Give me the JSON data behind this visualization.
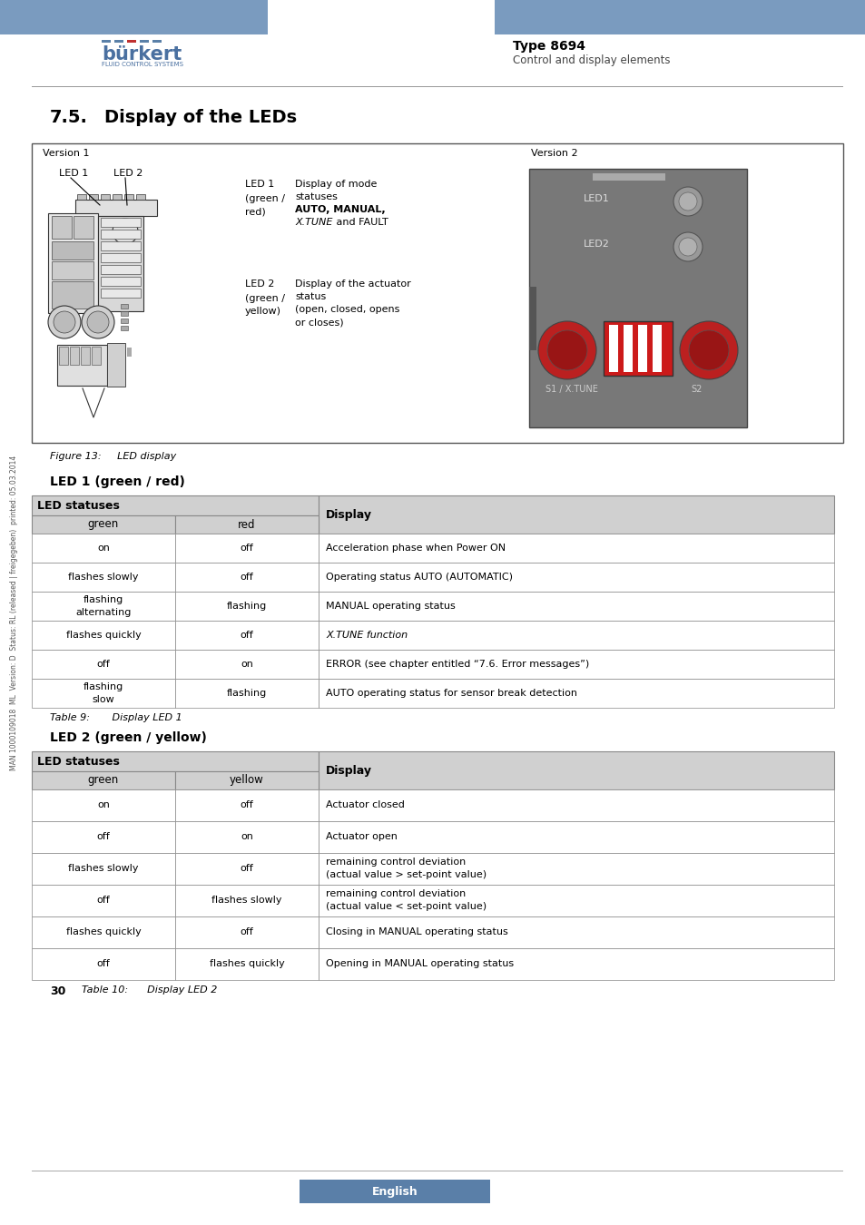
{
  "page_bg": "#ffffff",
  "header_bar_color": "#7a9bbf",
  "header_text_type": "Type 8694",
  "header_text_sub": "Control and display elements",
  "section_title": "7.5.    Display of the LEDs",
  "figure_caption": "Figure 13:     LED display",
  "led1_section_title": "LED 1 (green / red)",
  "led2_section_title": "LED 2 (green / yellow)",
  "table9_caption": "Table 9:       Display LED 1",
  "table10_caption": "Table 10:      Display LED 2",
  "page_number": "30",
  "footer_text": "English",
  "sidebar_text": "MAN 1000109018  ML  Version: D  Status: RL (released | freigegeben)  printed: 05.03.2014",
  "table1_header_col1": "LED statuses",
  "table1_header_col2": "green",
  "table1_header_col3": "red",
  "table1_header_col4": "Display",
  "table1_rows": [
    [
      "on",
      "off",
      "Acceleration phase when Power ON"
    ],
    [
      "flashes slowly",
      "off",
      "Operating status AUTO (AUTOMATIC)"
    ],
    [
      "flashing\nalternating",
      "flashing",
      "MANUAL operating status"
    ],
    [
      "flashes quickly",
      "off",
      "X.TUNE function"
    ],
    [
      "off",
      "on",
      "ERROR (see chapter entitled “7.6. Error messages”)"
    ],
    [
      "flashing\nslow",
      "flashing",
      "AUTO operating status for sensor break detection"
    ]
  ],
  "table2_header_col1": "LED statuses",
  "table2_header_col2": "green",
  "table2_header_col3": "yellow",
  "table2_header_col4": "Display",
  "table2_rows": [
    [
      "on",
      "off",
      "Actuator closed"
    ],
    [
      "off",
      "on",
      "Actuator open"
    ],
    [
      "flashes slowly",
      "off",
      "remaining control deviation\n(actual value > set-point value)"
    ],
    [
      "off",
      "flashes slowly",
      "remaining control deviation\n(actual value < set-point value)"
    ],
    [
      "flashes quickly",
      "off",
      "Closing in MANUAL operating status"
    ],
    [
      "off",
      "flashes quickly",
      "Opening in MANUAL operating status"
    ]
  ],
  "version1_text": "Version 1",
  "version2_text": "Version 2",
  "led1_label": "LED 1",
  "led2_label": "LED 2",
  "table_header_bg": "#d0d0d0",
  "table_subheader_bg": "#d0d0d0",
  "table_row_bg_even": "#ffffff",
  "table_row_bg_odd": "#ffffff",
  "table_border_color": "#888888"
}
